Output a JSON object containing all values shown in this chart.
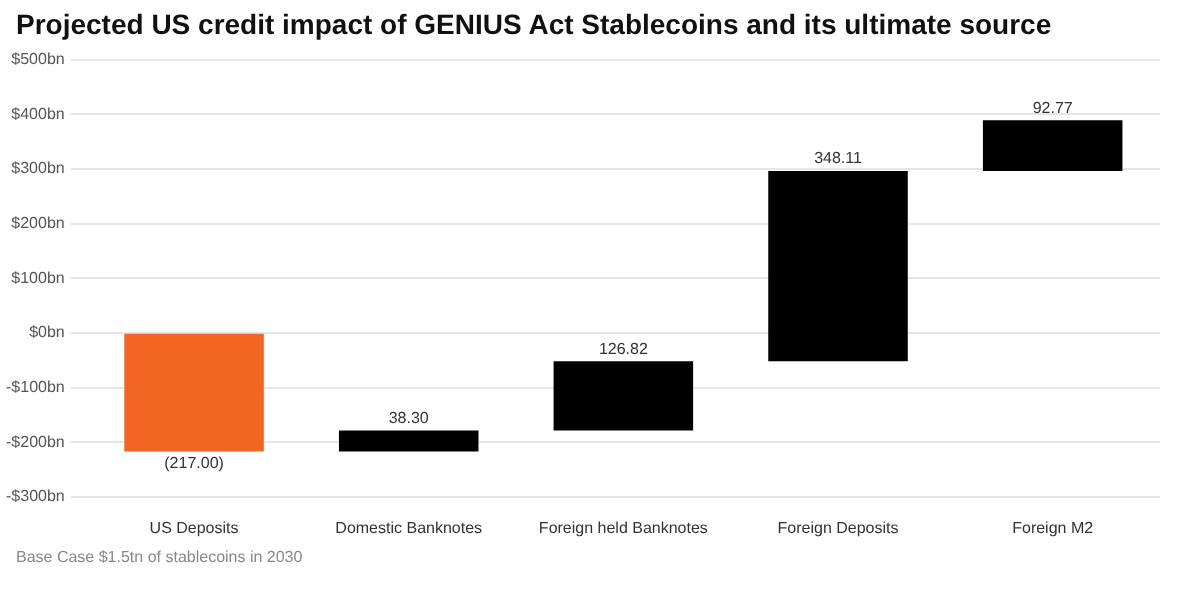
{
  "chart_data": {
    "type": "bar",
    "title": "Projected US credit impact of GENIUS Act Stablecoins and its ultimate source",
    "categories": [
      "US Deposits",
      "Domestic Banknotes",
      "Foreign held Banknotes",
      "Foreign Deposits",
      "Foreign M2"
    ],
    "values": [
      -217.0,
      38.3,
      126.82,
      348.11,
      92.77
    ],
    "base": [
      0,
      -217.0,
      -178.7,
      -51.88,
      296.23
    ],
    "colors": [
      "#f26522",
      "#000000",
      "#000000",
      "#000000",
      "#000000"
    ],
    "value_labels": [
      "(217.00)",
      "38.30",
      "126.82",
      "348.11",
      "92.77"
    ],
    "ylim": [
      -300,
      500
    ],
    "yticks": [
      {
        "value": -300,
        "label": "-$300bn"
      },
      {
        "value": -200,
        "label": "-$200bn"
      },
      {
        "value": -100,
        "label": "-$100bn"
      },
      {
        "value": 0,
        "label": "$0bn"
      },
      {
        "value": 100,
        "label": "$100bn"
      },
      {
        "value": 200,
        "label": "$200bn"
      },
      {
        "value": 300,
        "label": "$300bn"
      },
      {
        "value": 400,
        "label": "$400bn"
      },
      {
        "value": 500,
        "label": "$500bn"
      }
    ],
    "grid": "y",
    "legend": false,
    "annotations": [
      "Base Case $1.5tn of stablecoins in 2030"
    ]
  }
}
